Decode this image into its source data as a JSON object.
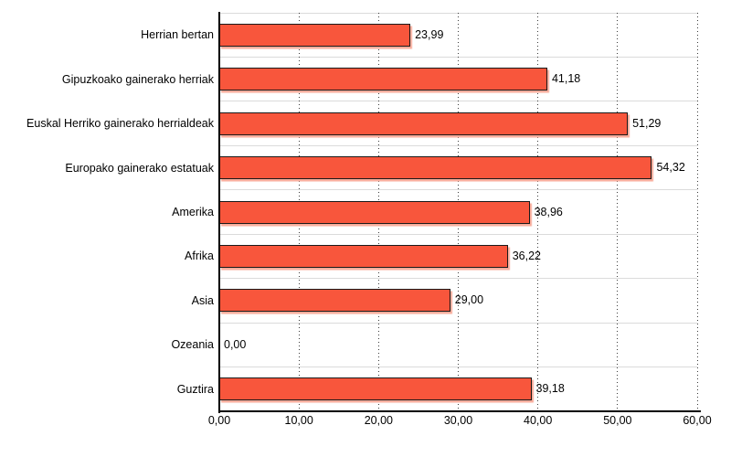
{
  "chart_data": {
    "type": "bar",
    "orientation": "horizontal",
    "title": "",
    "xlabel": "",
    "ylabel": "",
    "legend": "none",
    "categories": [
      "Herrian bertan",
      "Gipuzkoako gainerako herriak",
      "Euskal Herriko gainerako herrialdeak",
      "Europako gainerako estatuak",
      "Amerika",
      "Afrika",
      "Asia",
      "Ozeania",
      "Guztira"
    ],
    "values": [
      23.99,
      41.18,
      51.29,
      54.32,
      38.96,
      36.22,
      29.0,
      0.0,
      39.18
    ],
    "value_labels": [
      "23,99",
      "41,18",
      "51,29",
      "54,32",
      "38,96",
      "36,22",
      "29,00",
      "0,00",
      "39,18"
    ],
    "xlim": [
      0,
      60
    ],
    "x_tick_values": [
      0,
      10,
      20,
      30,
      40,
      50,
      60
    ],
    "x_tick_labels": [
      "0,00",
      "10,00",
      "20,00",
      "30,00",
      "40,00",
      "50,00",
      "60,00"
    ],
    "grid": {
      "vertical_style": "dotted",
      "horizontal_style": "solid",
      "horizontal_at_category_boundaries": true
    }
  },
  "colors": {
    "background": "#FFFFFF",
    "bar_fill": "#F8563C",
    "bar_border": "#1A1A1A",
    "bar_shadow": "#F8AC9B",
    "grid_vertical": "#3C3C3C",
    "grid_horizontal": "#DBDBDB",
    "axis_line": "#000000",
    "text": "#000000"
  }
}
